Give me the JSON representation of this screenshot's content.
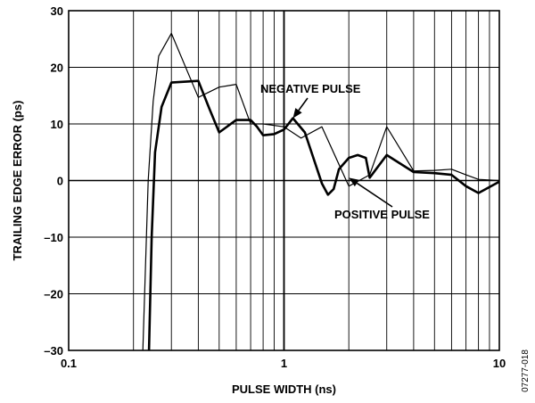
{
  "chart_data": {
    "type": "line",
    "title": "",
    "xlabel": "PULSE WIDTH (ns)",
    "ylabel": "TRAILING EDGE ERROR (ps)",
    "xscale": "log",
    "xlim": [
      0.1,
      10
    ],
    "ylim": [
      -30,
      30
    ],
    "x_ticks": [
      0.1,
      1,
      10
    ],
    "x_tick_labels": [
      "0.1",
      "1",
      "10"
    ],
    "y_ticks": [
      -30,
      -20,
      -10,
      0,
      10,
      20,
      30
    ],
    "y_tick_labels": [
      "–30",
      "–20",
      "–10",
      "0",
      "10",
      "20",
      "30"
    ],
    "grid": true,
    "colors": {
      "axis": "#000000",
      "grid": "#000000",
      "series": "#000000"
    },
    "series": [
      {
        "name": "NEGATIVE PULSE",
        "line_weight": "thin",
        "points": [
          [
            0.221,
            -30
          ],
          [
            0.234,
            0
          ],
          [
            0.247,
            14
          ],
          [
            0.262,
            22
          ],
          [
            0.3,
            26
          ],
          [
            0.4,
            14.7
          ],
          [
            0.5,
            16.5
          ],
          [
            0.6,
            17
          ],
          [
            0.7,
            10
          ],
          [
            0.8,
            10
          ],
          [
            1.0,
            9.5
          ],
          [
            1.2,
            7.5
          ],
          [
            1.5,
            9.5
          ],
          [
            2.0,
            -1
          ],
          [
            2.5,
            1
          ],
          [
            3.0,
            9.5
          ],
          [
            4.0,
            1.7
          ],
          [
            5.0,
            1.8
          ],
          [
            6.0,
            2
          ],
          [
            7.0,
            1
          ],
          [
            8.0,
            0.2
          ],
          [
            10,
            0
          ]
        ]
      },
      {
        "name": "POSITIVE PULSE",
        "line_weight": "bold",
        "points": [
          [
            0.236,
            -30
          ],
          [
            0.243,
            -10
          ],
          [
            0.252,
            5
          ],
          [
            0.27,
            13
          ],
          [
            0.3,
            17.3
          ],
          [
            0.4,
            17.6
          ],
          [
            0.45,
            12.7
          ],
          [
            0.5,
            8.5
          ],
          [
            0.6,
            10.7
          ],
          [
            0.7,
            10.7
          ],
          [
            0.75,
            9.5
          ],
          [
            0.8,
            8
          ],
          [
            0.9,
            8.2
          ],
          [
            1.0,
            9
          ],
          [
            1.1,
            11
          ],
          [
            1.25,
            8.5
          ],
          [
            1.5,
            -0.5
          ],
          [
            1.6,
            -2.5
          ],
          [
            1.7,
            -1.5
          ],
          [
            1.8,
            2
          ],
          [
            2.0,
            4
          ],
          [
            2.2,
            4.5
          ],
          [
            2.4,
            4
          ],
          [
            2.5,
            0.5
          ],
          [
            3.0,
            4.5
          ],
          [
            4.0,
            1.5
          ],
          [
            5.0,
            1.3
          ],
          [
            6.0,
            1
          ],
          [
            7.0,
            -1
          ],
          [
            8.0,
            -2.2
          ],
          [
            10,
            -0.2
          ]
        ]
      }
    ],
    "annotations": [
      {
        "text": "NEGATIVE PULSE",
        "points_to": [
          1.1,
          11
        ]
      },
      {
        "text": "POSITIVE PULSE",
        "points_to": [
          2.0,
          0.5
        ]
      }
    ],
    "figure_id": "07277-018"
  }
}
